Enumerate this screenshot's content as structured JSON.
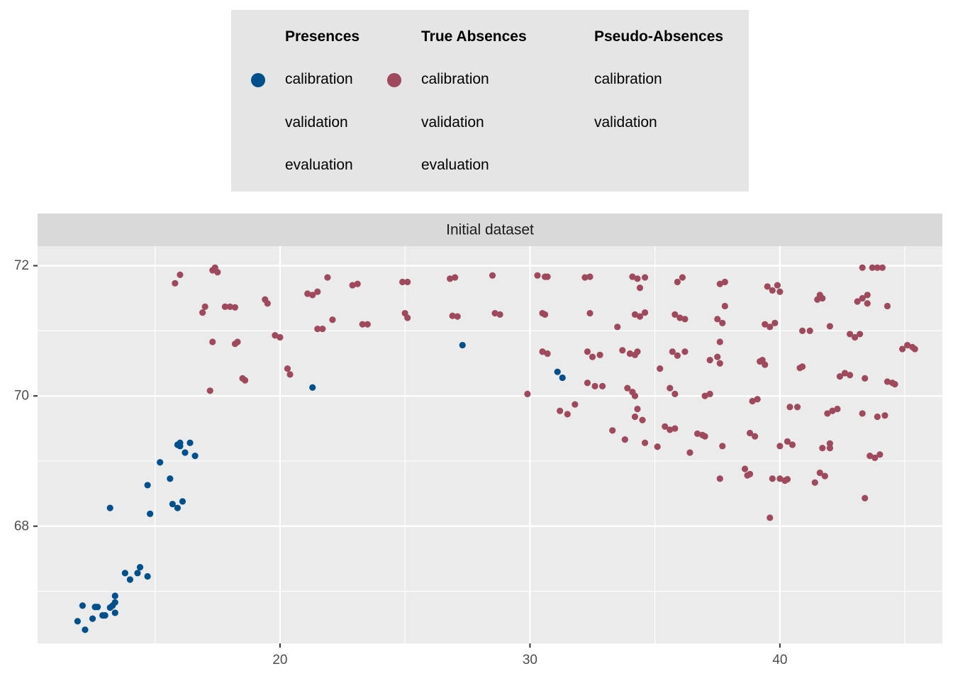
{
  "colors": {
    "presence": "#00508C",
    "absence": "#9E4A5C",
    "panel": "#EBEBEB",
    "strip": "#D9D9D9",
    "legend_bg": "#E5E5E5",
    "grid": "#FFFFFF"
  },
  "legend": {
    "columns": [
      {
        "title": "Presences",
        "key_color": "presence",
        "items": [
          "calibration",
          "validation",
          "evaluation"
        ]
      },
      {
        "title": "True Absences",
        "key_color": "absence",
        "items": [
          "calibration",
          "validation",
          "evaluation"
        ]
      },
      {
        "title": "Pseudo-Absences",
        "key_color": null,
        "items": [
          "calibration",
          "validation"
        ]
      }
    ]
  },
  "chart_data": {
    "type": "scatter",
    "facet_title": "Initial dataset",
    "xlim": [
      10.3,
      46.5
    ],
    "ylim": [
      66.2,
      72.3
    ],
    "x_ticks": [
      20,
      30,
      40
    ],
    "y_ticks": [
      68,
      70,
      72
    ],
    "xlabel": "",
    "ylabel": "",
    "grid": true,
    "legend_position": "top",
    "series": [
      {
        "name": "Presences",
        "color_key": "presence",
        "points": [
          [
            11.9,
            66.54
          ],
          [
            12.2,
            66.41
          ],
          [
            12.1,
            66.78
          ],
          [
            12.5,
            66.58
          ],
          [
            12.6,
            66.76
          ],
          [
            12.7,
            66.76
          ],
          [
            12.9,
            66.63
          ],
          [
            13.0,
            66.63
          ],
          [
            13.2,
            66.75
          ],
          [
            13.3,
            66.78
          ],
          [
            13.4,
            66.83
          ],
          [
            13.4,
            66.93
          ],
          [
            13.4,
            66.67
          ],
          [
            13.2,
            68.28
          ],
          [
            13.8,
            67.28
          ],
          [
            14.0,
            67.18
          ],
          [
            14.3,
            67.28
          ],
          [
            14.4,
            67.37
          ],
          [
            14.7,
            67.23
          ],
          [
            14.7,
            68.63
          ],
          [
            14.8,
            68.19
          ],
          [
            15.2,
            68.98
          ],
          [
            15.6,
            68.73
          ],
          [
            15.7,
            68.34
          ],
          [
            15.9,
            68.28
          ],
          [
            16.1,
            68.38
          ],
          [
            15.9,
            69.25
          ],
          [
            16.0,
            69.28
          ],
          [
            16.0,
            69.23
          ],
          [
            16.2,
            69.13
          ],
          [
            16.4,
            69.28
          ],
          [
            16.6,
            69.08
          ],
          [
            21.3,
            70.13
          ],
          [
            27.3,
            70.78
          ],
          [
            31.1,
            70.37
          ],
          [
            31.3,
            70.28
          ]
        ]
      },
      {
        "name": "True Absences",
        "color_key": "absence",
        "points": [
          [
            15.8,
            71.73
          ],
          [
            16.0,
            71.86
          ],
          [
            16.9,
            71.28
          ],
          [
            17.0,
            71.37
          ],
          [
            17.2,
            70.08
          ],
          [
            17.3,
            70.83
          ],
          [
            17.3,
            71.93
          ],
          [
            17.4,
            71.97
          ],
          [
            17.5,
            71.9
          ],
          [
            17.8,
            71.37
          ],
          [
            18.0,
            71.37
          ],
          [
            18.2,
            71.36
          ],
          [
            18.2,
            70.8
          ],
          [
            18.3,
            70.83
          ],
          [
            18.5,
            70.27
          ],
          [
            18.6,
            70.24
          ],
          [
            19.4,
            71.48
          ],
          [
            19.5,
            71.42
          ],
          [
            19.8,
            70.93
          ],
          [
            20.0,
            70.9
          ],
          [
            20.3,
            70.42
          ],
          [
            20.4,
            70.33
          ],
          [
            21.1,
            71.57
          ],
          [
            21.3,
            71.55
          ],
          [
            21.5,
            71.6
          ],
          [
            21.5,
            71.03
          ],
          [
            21.7,
            71.03
          ],
          [
            21.9,
            71.82
          ],
          [
            22.1,
            71.17
          ],
          [
            22.9,
            71.7
          ],
          [
            23.1,
            71.72
          ],
          [
            23.3,
            71.1
          ],
          [
            23.5,
            71.1
          ],
          [
            24.9,
            71.75
          ],
          [
            25.1,
            71.75
          ],
          [
            25.0,
            71.27
          ],
          [
            25.1,
            71.2
          ],
          [
            26.8,
            71.8
          ],
          [
            27.0,
            71.82
          ],
          [
            26.9,
            71.23
          ],
          [
            27.1,
            71.22
          ],
          [
            28.5,
            71.85
          ],
          [
            28.6,
            71.27
          ],
          [
            28.8,
            71.25
          ],
          [
            29.9,
            70.03
          ],
          [
            30.3,
            71.85
          ],
          [
            30.6,
            71.83
          ],
          [
            30.7,
            71.83
          ],
          [
            30.5,
            71.27
          ],
          [
            30.6,
            71.25
          ],
          [
            30.5,
            70.68
          ],
          [
            30.7,
            70.65
          ],
          [
            31.2,
            69.77
          ],
          [
            31.5,
            69.72
          ],
          [
            31.8,
            69.87
          ],
          [
            32.2,
            71.82
          ],
          [
            32.4,
            71.83
          ],
          [
            32.4,
            71.27
          ],
          [
            32.3,
            70.68
          ],
          [
            32.5,
            70.6
          ],
          [
            32.8,
            70.63
          ],
          [
            32.3,
            70.2
          ],
          [
            32.6,
            70.15
          ],
          [
            32.9,
            70.15
          ],
          [
            33.3,
            69.47
          ],
          [
            33.5,
            71.06
          ],
          [
            33.8,
            69.33
          ],
          [
            33.7,
            70.7
          ],
          [
            34.0,
            70.65
          ],
          [
            34.1,
            71.83
          ],
          [
            34.3,
            71.8
          ],
          [
            34.4,
            71.66
          ],
          [
            34.6,
            71.82
          ],
          [
            34.2,
            71.25
          ],
          [
            34.4,
            71.22
          ],
          [
            34.6,
            71.28
          ],
          [
            34.2,
            70.63
          ],
          [
            34.3,
            70.68
          ],
          [
            33.9,
            70.12
          ],
          [
            34.1,
            70.06
          ],
          [
            34.2,
            70.0
          ],
          [
            34.3,
            69.8
          ],
          [
            34.2,
            69.68
          ],
          [
            34.5,
            69.63
          ],
          [
            34.6,
            69.28
          ],
          [
            35.1,
            69.22
          ],
          [
            35.2,
            70.42
          ],
          [
            35.4,
            69.53
          ],
          [
            35.6,
            69.48
          ],
          [
            35.8,
            69.5
          ],
          [
            35.6,
            70.12
          ],
          [
            35.8,
            70.03
          ],
          [
            35.7,
            70.68
          ],
          [
            35.9,
            70.62
          ],
          [
            36.2,
            70.68
          ],
          [
            35.8,
            71.25
          ],
          [
            36.0,
            71.2
          ],
          [
            36.2,
            71.18
          ],
          [
            35.9,
            71.75
          ],
          [
            36.1,
            71.82
          ],
          [
            36.4,
            69.13
          ],
          [
            36.7,
            69.42
          ],
          [
            36.9,
            69.4
          ],
          [
            37.0,
            69.38
          ],
          [
            37.0,
            70.0
          ],
          [
            37.2,
            70.03
          ],
          [
            37.2,
            70.55
          ],
          [
            37.5,
            70.6
          ],
          [
            37.6,
            70.5
          ],
          [
            37.5,
            71.18
          ],
          [
            37.7,
            71.12
          ],
          [
            37.8,
            71.38
          ],
          [
            37.6,
            71.72
          ],
          [
            37.8,
            71.75
          ],
          [
            37.6,
            70.83
          ],
          [
            37.6,
            68.73
          ],
          [
            37.7,
            69.23
          ],
          [
            38.6,
            68.88
          ],
          [
            38.7,
            68.78
          ],
          [
            38.8,
            68.8
          ],
          [
            38.8,
            69.43
          ],
          [
            39.0,
            69.38
          ],
          [
            38.9,
            69.92
          ],
          [
            39.1,
            69.95
          ],
          [
            39.2,
            70.53
          ],
          [
            39.3,
            70.55
          ],
          [
            39.4,
            70.48
          ],
          [
            39.4,
            71.1
          ],
          [
            39.6,
            71.06
          ],
          [
            39.8,
            71.12
          ],
          [
            39.5,
            71.68
          ],
          [
            39.7,
            71.62
          ],
          [
            39.9,
            71.7
          ],
          [
            40.0,
            71.6
          ],
          [
            39.6,
            68.13
          ],
          [
            39.7,
            68.73
          ],
          [
            40.0,
            68.73
          ],
          [
            40.2,
            68.7
          ],
          [
            40.3,
            68.72
          ],
          [
            40.0,
            69.23
          ],
          [
            40.3,
            69.3
          ],
          [
            40.5,
            69.25
          ],
          [
            40.4,
            69.83
          ],
          [
            40.7,
            69.83
          ],
          [
            40.8,
            70.43
          ],
          [
            40.9,
            70.45
          ],
          [
            40.9,
            71.0
          ],
          [
            41.2,
            71.0
          ],
          [
            41.5,
            71.48
          ],
          [
            41.6,
            71.55
          ],
          [
            41.7,
            71.5
          ],
          [
            41.4,
            68.67
          ],
          [
            41.6,
            68.82
          ],
          [
            41.8,
            68.77
          ],
          [
            41.7,
            69.2
          ],
          [
            42.0,
            69.2
          ],
          [
            42.0,
            69.27
          ],
          [
            41.9,
            69.73
          ],
          [
            42.1,
            69.77
          ],
          [
            42.3,
            69.8
          ],
          [
            42.4,
            70.3
          ],
          [
            42.6,
            70.35
          ],
          [
            42.8,
            70.32
          ],
          [
            42.8,
            70.95
          ],
          [
            43.0,
            70.9
          ],
          [
            43.2,
            70.95
          ],
          [
            43.1,
            71.45
          ],
          [
            43.3,
            71.5
          ],
          [
            43.5,
            71.55
          ],
          [
            43.3,
            71.97
          ],
          [
            43.7,
            71.97
          ],
          [
            43.9,
            71.97
          ],
          [
            44.1,
            71.97
          ],
          [
            43.5,
            71.42
          ],
          [
            43.4,
            70.27
          ],
          [
            43.3,
            69.73
          ],
          [
            43.4,
            68.43
          ],
          [
            43.6,
            69.08
          ],
          [
            43.8,
            69.05
          ],
          [
            44.0,
            69.1
          ],
          [
            43.9,
            69.68
          ],
          [
            44.2,
            69.7
          ],
          [
            44.3,
            70.22
          ],
          [
            44.5,
            70.2
          ],
          [
            44.6,
            70.18
          ],
          [
            44.9,
            70.72
          ],
          [
            45.1,
            70.78
          ],
          [
            45.3,
            70.75
          ],
          [
            45.4,
            70.72
          ],
          [
            44.3,
            71.38
          ],
          [
            42.0,
            71.07
          ]
        ]
      }
    ]
  }
}
